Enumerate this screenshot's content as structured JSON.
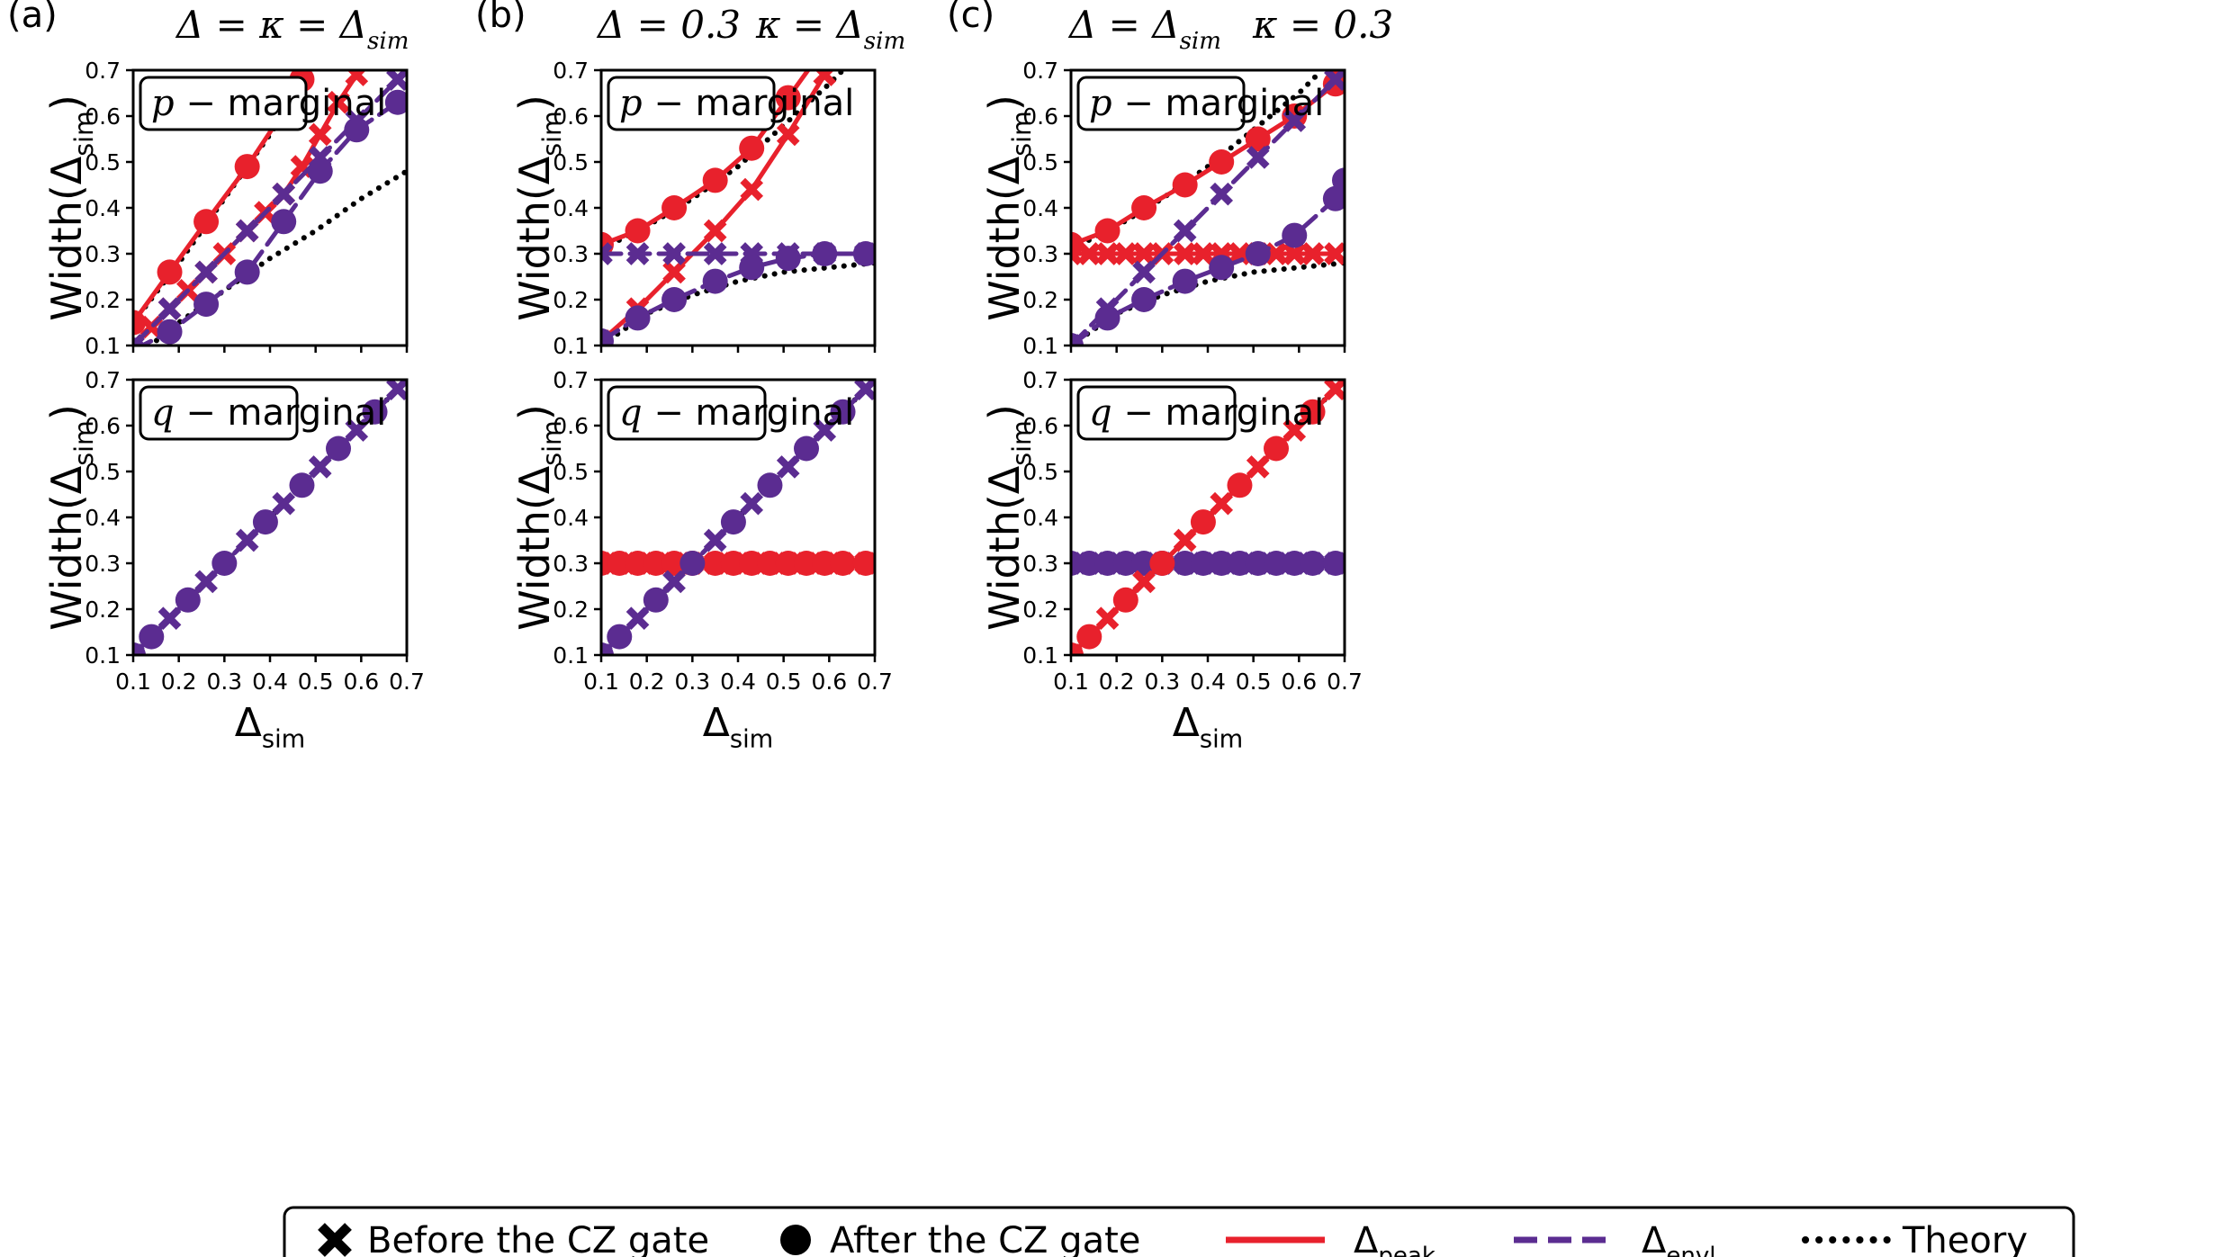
{
  "colors": {
    "peak": "#e8212c",
    "envl": "#5b2c91",
    "theory": "#000000"
  },
  "panel_labels": [
    "(a)",
    "(b)",
    "(c)"
  ],
  "column_titles": [
    {
      "left": "Δ = κ = Δsim",
      "right": ""
    },
    {
      "left": "Δ = 0.3",
      "right": "κ = Δsim"
    },
    {
      "left": "Δ = Δsim",
      "right": "κ = 0.3"
    }
  ],
  "ylabel": "Width(Δsim)",
  "xlabel": "Δsim",
  "box_labels": {
    "p": "p − marginal",
    "q": "q − marginal"
  },
  "legend": {
    "before": "Before the CZ gate",
    "after": "After the CZ gate",
    "peak": "Δpeak",
    "envl": "Δenvl",
    "theory": "Theory"
  },
  "chart_data": [
    {
      "type": "line",
      "column": "a",
      "row": "p-marginal",
      "xlim": [
        0.1,
        0.7
      ],
      "ylim": [
        0.1,
        0.7
      ],
      "xticks": [
        "0.1",
        "0.2",
        "0.3",
        "0.4",
        "0.5",
        "0.6",
        "0.7"
      ],
      "yticks": [
        "0.1",
        "0.2",
        "0.3",
        "0.4",
        "0.5",
        "0.6",
        "0.7"
      ],
      "series": [
        {
          "name": "peak before",
          "color": "peak",
          "marker": "x",
          "dash": false,
          "x": [
            0.1,
            0.14,
            0.18,
            0.22,
            0.26,
            0.3,
            0.35,
            0.39,
            0.43,
            0.47,
            0.51,
            0.55,
            0.59,
            0.63
          ],
          "y": [
            0.1,
            0.14,
            0.18,
            0.22,
            0.26,
            0.3,
            0.35,
            0.39,
            0.43,
            0.49,
            0.56,
            0.63,
            0.69,
            0.75
          ]
        },
        {
          "name": "peak after",
          "color": "peak",
          "marker": "o",
          "dash": false,
          "x": [
            0.1,
            0.18,
            0.26,
            0.35,
            0.43,
            0.47
          ],
          "y": [
            0.15,
            0.26,
            0.37,
            0.49,
            0.61,
            0.68
          ]
        },
        {
          "name": "envl before",
          "color": "envl",
          "marker": "x",
          "dash": true,
          "x": [
            0.1,
            0.18,
            0.26,
            0.35,
            0.43,
            0.51,
            0.59,
            0.68
          ],
          "y": [
            0.1,
            0.18,
            0.26,
            0.35,
            0.43,
            0.51,
            0.59,
            0.68
          ]
        },
        {
          "name": "envl after",
          "color": "envl",
          "marker": "o",
          "dash": true,
          "x": [
            0.1,
            0.18,
            0.26,
            0.35,
            0.43,
            0.51,
            0.59,
            0.68
          ],
          "y": [
            0.09,
            0.13,
            0.19,
            0.26,
            0.37,
            0.48,
            0.57,
            0.63
          ]
        },
        {
          "name": "theory 1",
          "color": "theory",
          "marker": "none",
          "dash": "dot",
          "x": [
            0.1,
            0.2,
            0.3,
            0.4,
            0.5,
            0.6,
            0.7
          ],
          "y": [
            0.07,
            0.15,
            0.22,
            0.29,
            0.35,
            0.42,
            0.48
          ]
        },
        {
          "name": "theory 2",
          "color": "theory",
          "marker": "none",
          "dash": "dot",
          "x": [
            0.1,
            0.2,
            0.3,
            0.4,
            0.45
          ],
          "y": [
            0.15,
            0.28,
            0.42,
            0.56,
            0.63
          ]
        }
      ]
    },
    {
      "type": "line",
      "column": "b",
      "row": "p-marginal",
      "xlim": [
        0.1,
        0.7
      ],
      "ylim": [
        0.1,
        0.7
      ],
      "xticks": [
        "0.1",
        "0.2",
        "0.3",
        "0.4",
        "0.5",
        "0.6",
        "0.7"
      ],
      "yticks": [
        "0.1",
        "0.2",
        "0.3",
        "0.4",
        "0.5",
        "0.6",
        "0.7"
      ],
      "series": [
        {
          "name": "peak before",
          "color": "peak",
          "marker": "x",
          "dash": false,
          "x": [
            0.1,
            0.18,
            0.26,
            0.35,
            0.43,
            0.51,
            0.59
          ],
          "y": [
            0.11,
            0.18,
            0.26,
            0.35,
            0.44,
            0.56,
            0.69
          ]
        },
        {
          "name": "peak after",
          "color": "peak",
          "marker": "o",
          "dash": false,
          "x": [
            0.1,
            0.18,
            0.26,
            0.35,
            0.43,
            0.51,
            0.59
          ],
          "y": [
            0.32,
            0.35,
            0.4,
            0.46,
            0.53,
            0.64,
            0.75
          ]
        },
        {
          "name": "envl before",
          "color": "envl",
          "marker": "x",
          "dash": true,
          "x": [
            0.1,
            0.18,
            0.26,
            0.35,
            0.43,
            0.51,
            0.59,
            0.68
          ],
          "y": [
            0.3,
            0.3,
            0.3,
            0.3,
            0.3,
            0.3,
            0.3,
            0.3
          ]
        },
        {
          "name": "envl after",
          "color": "envl",
          "marker": "o",
          "dash": true,
          "x": [
            0.1,
            0.18,
            0.26,
            0.35,
            0.43,
            0.51,
            0.59,
            0.68
          ],
          "y": [
            0.11,
            0.16,
            0.2,
            0.24,
            0.27,
            0.29,
            0.3,
            0.3
          ]
        },
        {
          "name": "theory 1",
          "color": "theory",
          "marker": "none",
          "dash": "dot",
          "x": [
            0.1,
            0.2,
            0.3,
            0.4,
            0.5,
            0.6,
            0.7
          ],
          "y": [
            0.1,
            0.17,
            0.21,
            0.24,
            0.26,
            0.27,
            0.28
          ]
        },
        {
          "name": "theory 2",
          "color": "theory",
          "marker": "none",
          "dash": "dot",
          "x": [
            0.1,
            0.2,
            0.3,
            0.4,
            0.5,
            0.6,
            0.63
          ],
          "y": [
            0.31,
            0.36,
            0.42,
            0.49,
            0.58,
            0.67,
            0.7
          ]
        }
      ]
    },
    {
      "type": "line",
      "column": "c",
      "row": "p-marginal",
      "xlim": [
        0.1,
        0.7
      ],
      "ylim": [
        0.1,
        0.7
      ],
      "xticks": [
        "0.1",
        "0.2",
        "0.3",
        "0.4",
        "0.5",
        "0.6",
        "0.7"
      ],
      "yticks": [
        "0.1",
        "0.2",
        "0.3",
        "0.4",
        "0.5",
        "0.6",
        "0.7"
      ],
      "series": [
        {
          "name": "peak before",
          "color": "peak",
          "marker": "x",
          "dash": false,
          "x": [
            0.1,
            0.14,
            0.18,
            0.22,
            0.26,
            0.3,
            0.35,
            0.39,
            0.43,
            0.47,
            0.51,
            0.55,
            0.59,
            0.63,
            0.68
          ],
          "y": [
            0.3,
            0.3,
            0.3,
            0.3,
            0.3,
            0.3,
            0.3,
            0.3,
            0.3,
            0.3,
            0.3,
            0.3,
            0.3,
            0.3,
            0.3
          ]
        },
        {
          "name": "peak after",
          "color": "peak",
          "marker": "o",
          "dash": false,
          "x": [
            0.1,
            0.18,
            0.26,
            0.35,
            0.43,
            0.51,
            0.59,
            0.68
          ],
          "y": [
            0.32,
            0.35,
            0.4,
            0.45,
            0.5,
            0.55,
            0.6,
            0.67
          ]
        },
        {
          "name": "envl before",
          "color": "envl",
          "marker": "x",
          "dash": true,
          "x": [
            0.1,
            0.18,
            0.26,
            0.35,
            0.43,
            0.51,
            0.59,
            0.68
          ],
          "y": [
            0.1,
            0.18,
            0.26,
            0.35,
            0.43,
            0.51,
            0.59,
            0.68
          ]
        },
        {
          "name": "envl after",
          "color": "envl",
          "marker": "o",
          "dash": true,
          "x": [
            0.1,
            0.18,
            0.26,
            0.35,
            0.43,
            0.51,
            0.59,
            0.68,
            0.7
          ],
          "y": [
            0.1,
            0.16,
            0.2,
            0.24,
            0.27,
            0.3,
            0.34,
            0.42,
            0.46
          ]
        },
        {
          "name": "theory 1",
          "color": "theory",
          "marker": "none",
          "dash": "dot",
          "x": [
            0.1,
            0.2,
            0.3,
            0.4,
            0.5,
            0.6,
            0.7
          ],
          "y": [
            0.1,
            0.17,
            0.21,
            0.24,
            0.26,
            0.27,
            0.28
          ]
        },
        {
          "name": "theory 2",
          "color": "theory",
          "marker": "none",
          "dash": "dot",
          "x": [
            0.1,
            0.2,
            0.3,
            0.4,
            0.5,
            0.6,
            0.65
          ],
          "y": [
            0.31,
            0.36,
            0.42,
            0.49,
            0.57,
            0.65,
            0.7
          ]
        }
      ]
    },
    {
      "type": "line",
      "column": "a",
      "row": "q-marginal",
      "xlim": [
        0.1,
        0.7
      ],
      "ylim": [
        0.1,
        0.7
      ],
      "xticks": [
        "0.1",
        "0.2",
        "0.3",
        "0.4",
        "0.5",
        "0.6",
        "0.7"
      ],
      "yticks": [
        "0.1",
        "0.2",
        "0.3",
        "0.4",
        "0.5",
        "0.6",
        "0.7"
      ],
      "series": [
        {
          "name": "envl before",
          "color": "envl",
          "marker": "x",
          "dash": true,
          "x": [
            0.1,
            0.18,
            0.26,
            0.35,
            0.43,
            0.51,
            0.59,
            0.68
          ],
          "y": [
            0.1,
            0.18,
            0.26,
            0.35,
            0.43,
            0.51,
            0.59,
            0.68
          ]
        },
        {
          "name": "envl after",
          "color": "envl",
          "marker": "o",
          "dash": true,
          "x": [
            0.1,
            0.14,
            0.22,
            0.3,
            0.39,
            0.47,
            0.55,
            0.63
          ],
          "y": [
            0.1,
            0.14,
            0.22,
            0.3,
            0.39,
            0.47,
            0.55,
            0.63
          ]
        },
        {
          "name": "theory",
          "color": "theory",
          "marker": "none",
          "dash": "dot",
          "x": [
            0.1,
            0.7
          ],
          "y": [
            0.1,
            0.7
          ]
        }
      ]
    },
    {
      "type": "line",
      "column": "b",
      "row": "q-marginal",
      "xlim": [
        0.1,
        0.7
      ],
      "ylim": [
        0.1,
        0.7
      ],
      "xticks": [
        "0.1",
        "0.2",
        "0.3",
        "0.4",
        "0.5",
        "0.6",
        "0.7"
      ],
      "yticks": [
        "0.1",
        "0.2",
        "0.3",
        "0.4",
        "0.5",
        "0.6",
        "0.7"
      ],
      "series": [
        {
          "name": "peak before",
          "color": "peak",
          "marker": "x",
          "dash": false,
          "x": [
            0.1,
            0.14,
            0.18,
            0.22,
            0.26,
            0.3,
            0.35,
            0.39,
            0.43,
            0.47,
            0.51,
            0.55,
            0.59,
            0.63,
            0.68
          ],
          "y": [
            0.3,
            0.3,
            0.3,
            0.3,
            0.3,
            0.3,
            0.3,
            0.3,
            0.3,
            0.3,
            0.3,
            0.3,
            0.3,
            0.3,
            0.3
          ]
        },
        {
          "name": "peak after",
          "color": "peak",
          "marker": "o",
          "dash": false,
          "x": [
            0.1,
            0.14,
            0.18,
            0.22,
            0.26,
            0.3,
            0.35,
            0.39,
            0.43,
            0.47,
            0.51,
            0.55,
            0.59,
            0.63,
            0.68
          ],
          "y": [
            0.3,
            0.3,
            0.3,
            0.3,
            0.3,
            0.3,
            0.3,
            0.3,
            0.3,
            0.3,
            0.3,
            0.3,
            0.3,
            0.3,
            0.3
          ]
        },
        {
          "name": "envl before",
          "color": "envl",
          "marker": "x",
          "dash": true,
          "x": [
            0.1,
            0.18,
            0.26,
            0.35,
            0.43,
            0.51,
            0.59,
            0.68
          ],
          "y": [
            0.1,
            0.18,
            0.26,
            0.35,
            0.43,
            0.51,
            0.59,
            0.68
          ]
        },
        {
          "name": "envl after",
          "color": "envl",
          "marker": "o",
          "dash": true,
          "x": [
            0.1,
            0.14,
            0.22,
            0.3,
            0.39,
            0.47,
            0.55,
            0.63
          ],
          "y": [
            0.1,
            0.14,
            0.22,
            0.3,
            0.39,
            0.47,
            0.55,
            0.63
          ]
        },
        {
          "name": "theory 1",
          "color": "theory",
          "marker": "none",
          "dash": "dot",
          "x": [
            0.1,
            0.7
          ],
          "y": [
            0.1,
            0.7
          ]
        },
        {
          "name": "theory 2",
          "color": "theory",
          "marker": "none",
          "dash": "dot",
          "x": [
            0.1,
            0.7
          ],
          "y": [
            0.3,
            0.3
          ]
        }
      ]
    },
    {
      "type": "line",
      "column": "c",
      "row": "q-marginal",
      "xlim": [
        0.1,
        0.7
      ],
      "ylim": [
        0.1,
        0.7
      ],
      "xticks": [
        "0.1",
        "0.2",
        "0.3",
        "0.4",
        "0.5",
        "0.6",
        "0.7"
      ],
      "yticks": [
        "0.1",
        "0.2",
        "0.3",
        "0.4",
        "0.5",
        "0.6",
        "0.7"
      ],
      "series": [
        {
          "name": "envl before",
          "color": "envl",
          "marker": "x",
          "dash": true,
          "x": [
            0.1,
            0.14,
            0.18,
            0.22,
            0.26,
            0.3,
            0.35,
            0.39,
            0.43,
            0.47,
            0.51,
            0.55,
            0.59,
            0.63,
            0.68
          ],
          "y": [
            0.3,
            0.3,
            0.3,
            0.3,
            0.3,
            0.3,
            0.3,
            0.3,
            0.3,
            0.3,
            0.3,
            0.3,
            0.3,
            0.3,
            0.3
          ]
        },
        {
          "name": "envl after",
          "color": "envl",
          "marker": "o",
          "dash": true,
          "x": [
            0.1,
            0.14,
            0.18,
            0.22,
            0.26,
            0.3,
            0.35,
            0.39,
            0.43,
            0.47,
            0.51,
            0.55,
            0.59,
            0.63,
            0.68
          ],
          "y": [
            0.3,
            0.3,
            0.3,
            0.3,
            0.3,
            0.3,
            0.3,
            0.3,
            0.3,
            0.3,
            0.3,
            0.3,
            0.3,
            0.3,
            0.3
          ]
        },
        {
          "name": "peak before",
          "color": "peak",
          "marker": "x",
          "dash": false,
          "x": [
            0.1,
            0.18,
            0.26,
            0.35,
            0.43,
            0.51,
            0.59,
            0.68
          ],
          "y": [
            0.1,
            0.18,
            0.26,
            0.35,
            0.43,
            0.51,
            0.59,
            0.68
          ]
        },
        {
          "name": "peak after",
          "color": "peak",
          "marker": "o",
          "dash": false,
          "x": [
            0.1,
            0.14,
            0.22,
            0.3,
            0.39,
            0.47,
            0.55,
            0.63
          ],
          "y": [
            0.1,
            0.14,
            0.22,
            0.3,
            0.39,
            0.47,
            0.55,
            0.63
          ]
        },
        {
          "name": "theory 1",
          "color": "theory",
          "marker": "none",
          "dash": "dot",
          "x": [
            0.1,
            0.7
          ],
          "y": [
            0.1,
            0.7
          ]
        },
        {
          "name": "theory 2",
          "color": "theory",
          "marker": "none",
          "dash": "dot",
          "x": [
            0.1,
            0.7
          ],
          "y": [
            0.3,
            0.3
          ]
        }
      ]
    }
  ]
}
